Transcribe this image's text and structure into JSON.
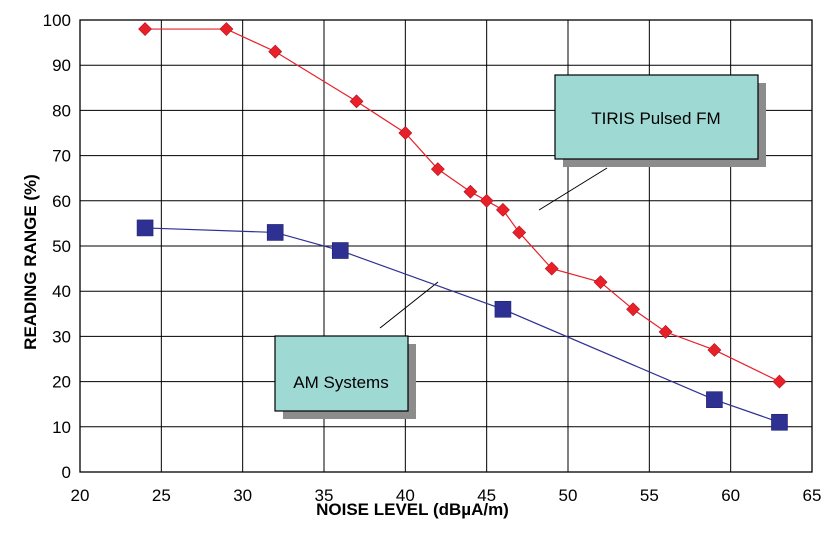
{
  "chart_data": {
    "type": "line",
    "xlabel": "NOISE LEVEL (dBµA/m)",
    "ylabel": "READING RANGE (%)",
    "xlim": [
      20,
      65
    ],
    "ylim": [
      0,
      100
    ],
    "x_ticks": [
      20,
      25,
      30,
      35,
      40,
      45,
      50,
      55,
      60,
      65
    ],
    "y_ticks": [
      0,
      10,
      20,
      30,
      40,
      50,
      60,
      70,
      80,
      90,
      100
    ],
    "grid": true,
    "series": [
      {
        "name": "TIRIS Pulsed FM",
        "color": "#e8202a",
        "marker": "diamond",
        "points": [
          [
            24,
            98
          ],
          [
            29,
            98
          ],
          [
            32,
            93
          ],
          [
            37,
            82
          ],
          [
            40,
            75
          ],
          [
            42,
            67
          ],
          [
            44,
            62
          ],
          [
            45,
            60
          ],
          [
            46,
            58
          ],
          [
            47,
            53
          ],
          [
            49,
            45
          ],
          [
            52,
            42
          ],
          [
            54,
            36
          ],
          [
            56,
            31
          ],
          [
            59,
            27
          ],
          [
            63,
            20
          ]
        ]
      },
      {
        "name": "AM Systems",
        "color": "#2e3192",
        "marker": "square",
        "points": [
          [
            24,
            54
          ],
          [
            32,
            53
          ],
          [
            36,
            49
          ],
          [
            46,
            36
          ],
          [
            59,
            16
          ],
          [
            63,
            11
          ]
        ]
      }
    ],
    "callout_color": "#9fd9d4"
  }
}
